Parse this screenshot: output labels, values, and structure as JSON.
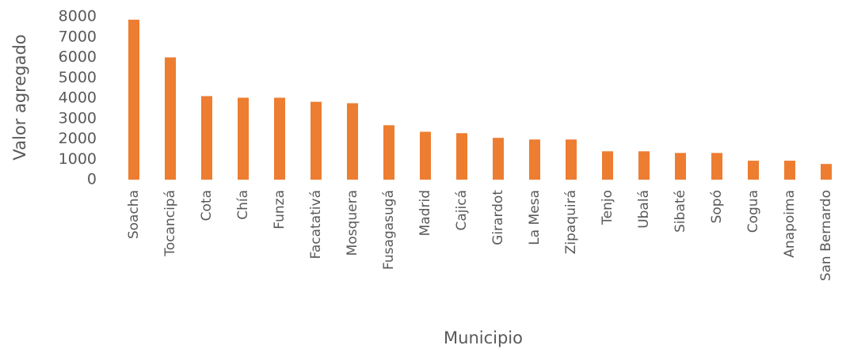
{
  "chart_data": {
    "type": "bar",
    "x_label": "Municipio",
    "y_label": "Valor agregado",
    "categories": [
      "Soacha",
      "Tocancipá",
      "Cota",
      "Chía",
      "Funza",
      "Facatativá",
      "Mosquera",
      "Fusagasugá",
      "Madrid",
      "Cajicá",
      "Girardot",
      "La Mesa",
      "Zipaquirá",
      "Tenjo",
      "Ubalá",
      "Sibaté",
      "Sopó",
      "Cogua",
      "Anapoima",
      "San Bernardo"
    ],
    "values": [
      7850,
      6000,
      4100,
      4020,
      4020,
      3820,
      3750,
      2670,
      2350,
      2280,
      2050,
      1970,
      1970,
      1390,
      1390,
      1310,
      1310,
      930,
      930,
      770
    ],
    "color": "#ed7d31",
    "ylim": [
      0,
      8000
    ],
    "yticks": [
      0,
      1000,
      2000,
      3000,
      4000,
      5000,
      6000,
      7000,
      8000
    ],
    "grid": false
  }
}
